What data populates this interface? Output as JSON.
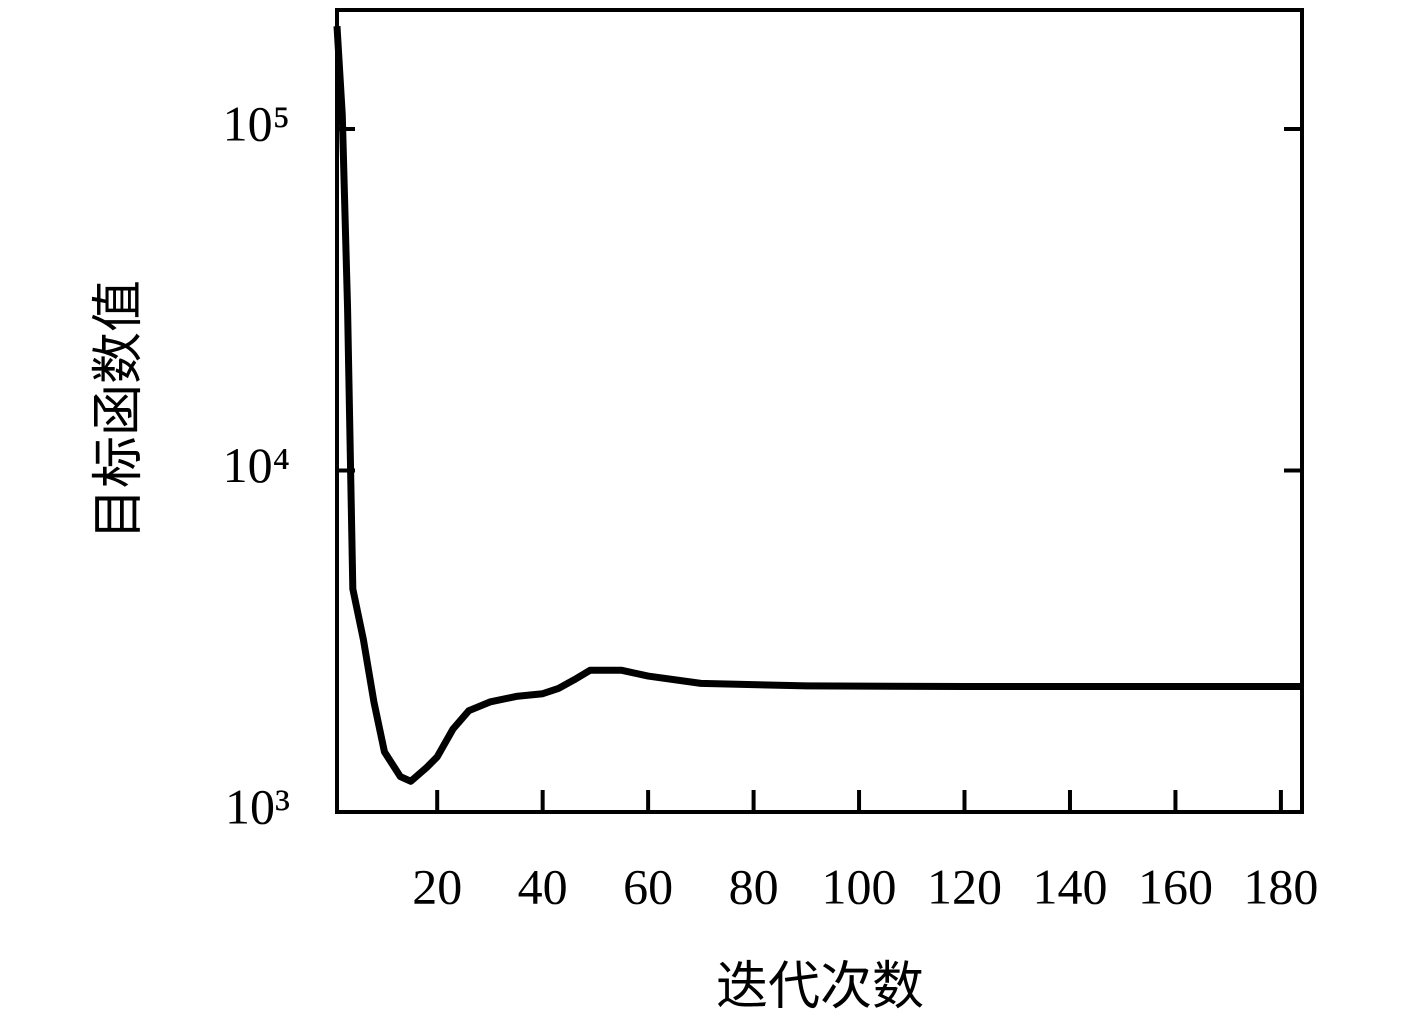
{
  "chart_data": {
    "type": "line",
    "y_label": "目标函数值",
    "x_label": "迭代次数",
    "x": [
      1,
      2,
      3,
      4,
      6,
      8,
      10,
      13,
      15,
      18,
      20,
      23,
      26,
      30,
      35,
      40,
      43,
      46,
      49,
      55,
      60,
      70,
      90,
      120,
      184
    ],
    "series": [
      {
        "name": "目标函数值",
        "color": "#000000",
        "values": [
          200000,
          110000,
          30000,
          4500,
          3200,
          2100,
          1500,
          1270,
          1230,
          1350,
          1450,
          1750,
          1980,
          2100,
          2180,
          2220,
          2300,
          2440,
          2600,
          2600,
          2500,
          2380,
          2340,
          2330,
          2330
        ]
      }
    ],
    "xlim": [
      1,
      184
    ],
    "xticks": [
      20,
      40,
      60,
      80,
      100,
      120,
      140,
      160,
      180
    ],
    "ylim": [
      1000,
      223000
    ],
    "ylog": true,
    "yticks": [
      {
        "value": 1000,
        "label": "10³"
      },
      {
        "value": 10000,
        "label": "10⁴"
      },
      {
        "value": 100000,
        "label": "10⁵"
      }
    ]
  }
}
